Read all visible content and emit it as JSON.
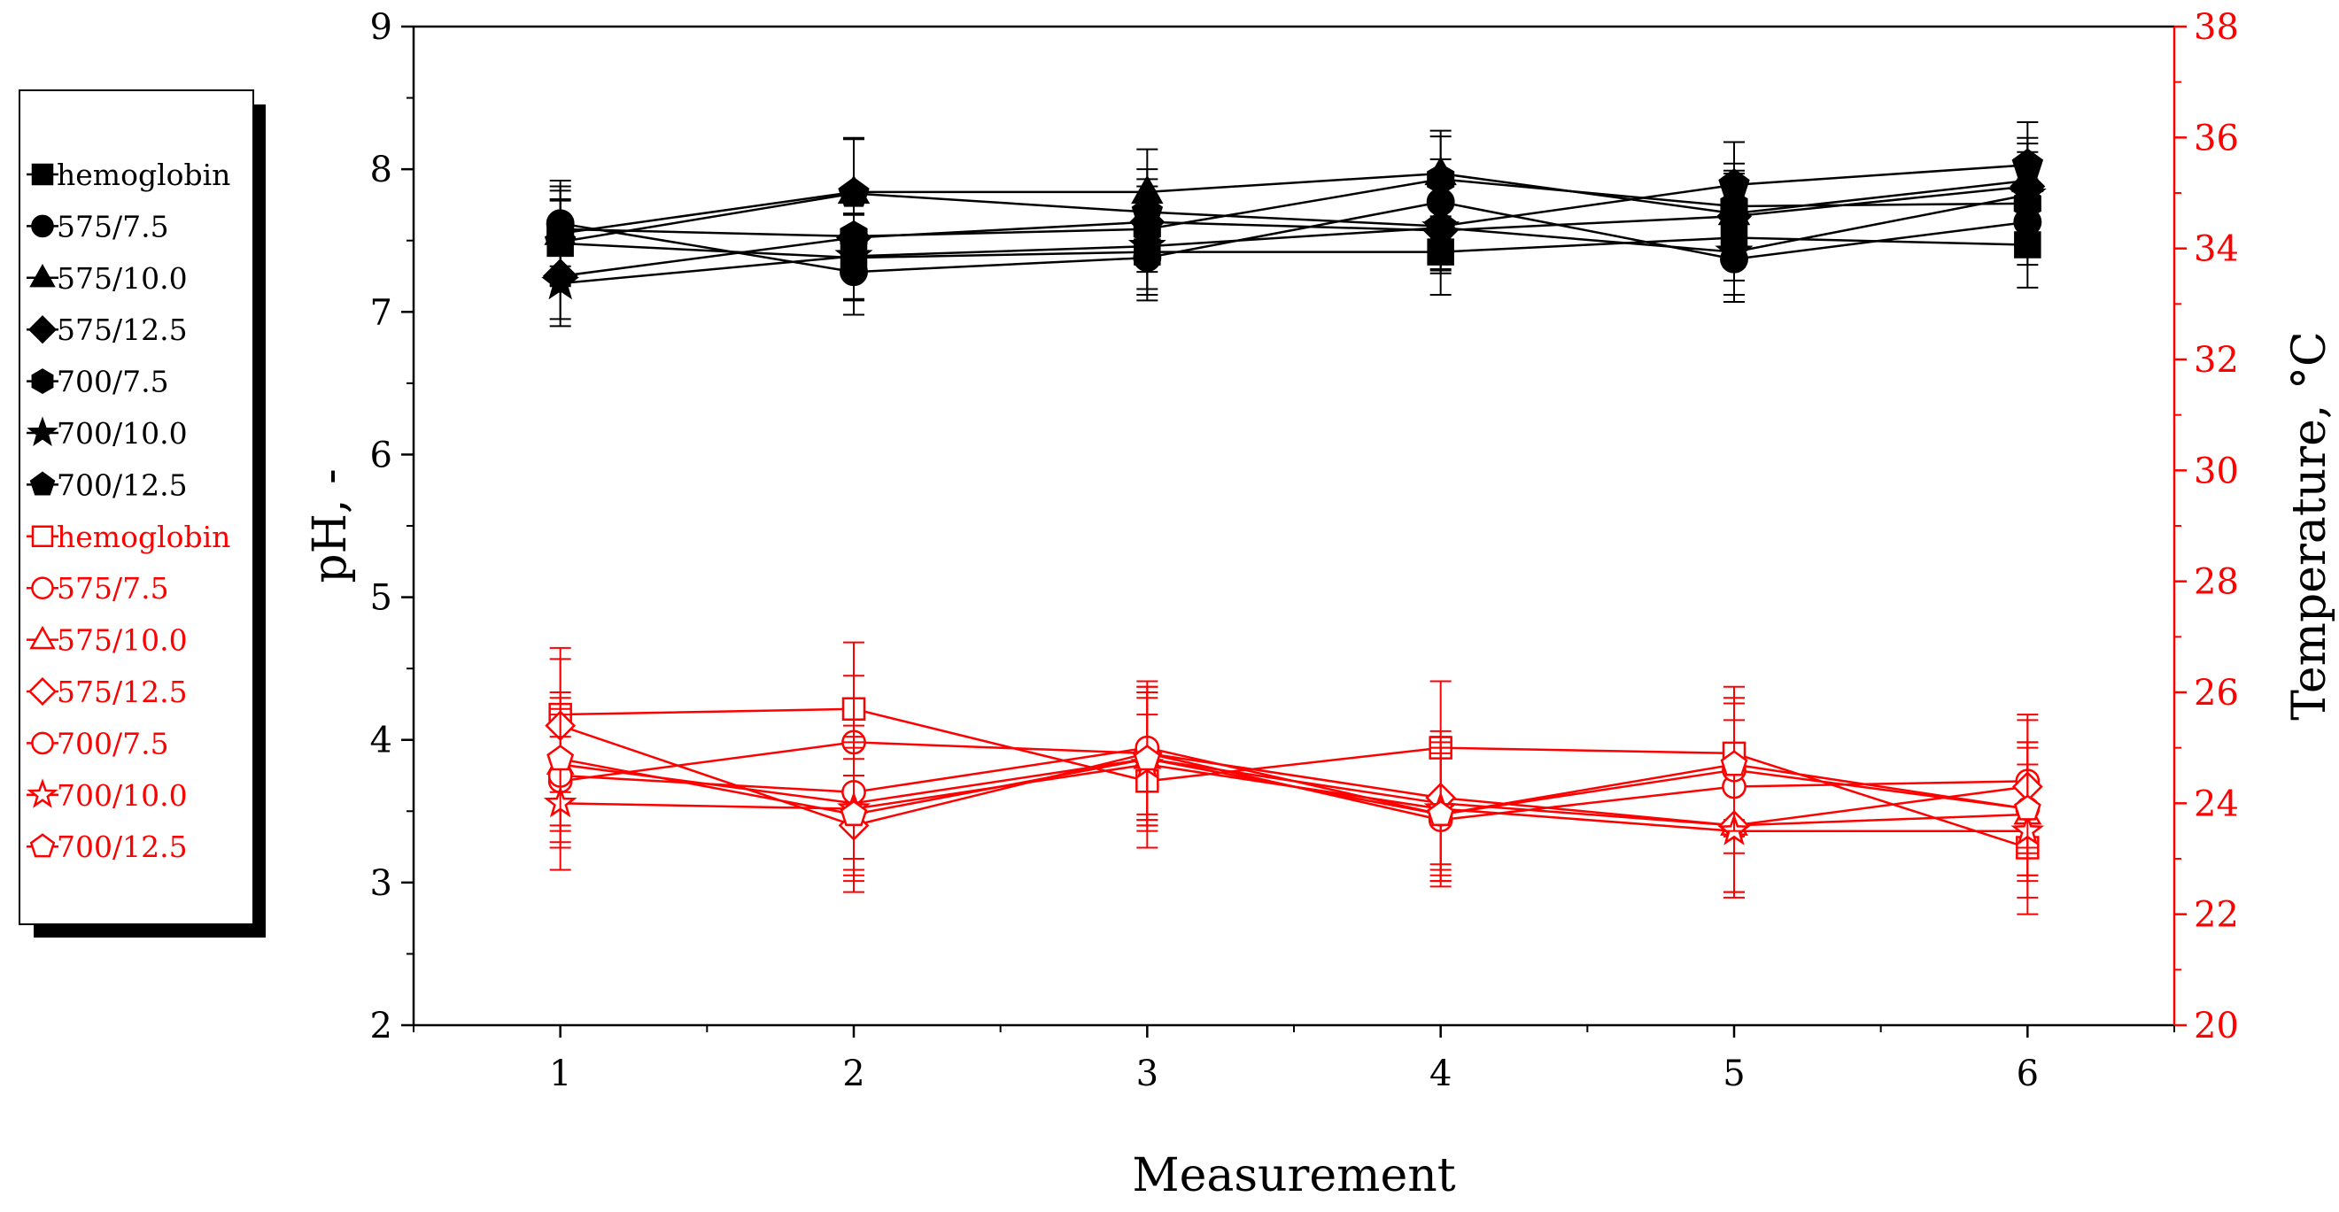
{
  "chart_data": {
    "type": "line",
    "title": "",
    "xlabel": "Measurement",
    "ylabel_left": "pH, -",
    "ylabel_right": "Temperature, °C",
    "x": [
      1,
      2,
      3,
      4,
      5,
      6
    ],
    "xlim": [
      0.5,
      6.5
    ],
    "ylim_left": [
      2,
      9
    ],
    "ylim_right": [
      20,
      38
    ],
    "x_ticks": [
      "1",
      "2",
      "3",
      "4",
      "5",
      "6"
    ],
    "y_left_ticks": [
      "2",
      "3",
      "4",
      "5",
      "6",
      "7",
      "8",
      "9"
    ],
    "y_right_ticks": [
      "20",
      "22",
      "24",
      "26",
      "28",
      "30",
      "32",
      "34",
      "36",
      "38"
    ],
    "grid": false,
    "legend_position": "outside-left",
    "colors": {
      "ph": "#000000",
      "temperature": "#ff0000"
    },
    "series": [
      {
        "name": "hemoglobin",
        "axis": "left",
        "marker": "square",
        "filled": true,
        "values": [
          7.48,
          7.38,
          7.42,
          7.42,
          7.52,
          7.47
        ],
        "error": [
          0.3,
          0.3,
          0.3,
          0.3,
          0.3,
          0.3
        ]
      },
      {
        "name": "575/7.5",
        "axis": "left",
        "marker": "circle",
        "filled": true,
        "values": [
          7.62,
          7.28,
          7.38,
          7.77,
          7.37,
          7.63
        ],
        "error": [
          0.3,
          0.3,
          0.3,
          0.3,
          0.3,
          0.3
        ]
      },
      {
        "name": "575/10.0",
        "axis": "left",
        "marker": "triangle",
        "filled": true,
        "values": [
          7.55,
          7.84,
          7.84,
          7.97,
          7.69,
          7.92
        ],
        "error": [
          0.3,
          0.38,
          0.3,
          0.3,
          0.3,
          0.3
        ]
      },
      {
        "name": "575/12.5",
        "axis": "left",
        "marker": "diamond",
        "filled": true,
        "values": [
          7.25,
          7.52,
          7.63,
          7.57,
          7.67,
          7.88
        ],
        "error": [
          0.3,
          0.3,
          0.3,
          0.3,
          0.3,
          0.3
        ]
      },
      {
        "name": "700/7.5",
        "axis": "left",
        "marker": "hexagon",
        "filled": true,
        "values": [
          7.58,
          7.53,
          7.58,
          7.93,
          7.74,
          7.76
        ],
        "error": [
          0.3,
          0.3,
          0.3,
          0.3,
          0.3,
          0.3
        ]
      },
      {
        "name": "700/10.0",
        "axis": "left",
        "marker": "star",
        "filled": true,
        "values": [
          7.2,
          7.39,
          7.46,
          7.59,
          7.42,
          7.82
        ],
        "error": [
          0.3,
          0.3,
          0.3,
          0.3,
          0.3,
          0.3
        ]
      },
      {
        "name": "700/12.5",
        "axis": "left",
        "marker": "pentagon",
        "filled": true,
        "values": [
          7.49,
          7.83,
          7.7,
          7.6,
          7.89,
          8.03
        ],
        "error": [
          0.3,
          0.38,
          0.3,
          0.3,
          0.3,
          0.3
        ]
      },
      {
        "name": "hemoglobin",
        "axis": "right",
        "marker": "square",
        "filled": false,
        "values": [
          25.6,
          25.7,
          24.4,
          25.0,
          24.9,
          23.2
        ],
        "error": [
          1.2,
          1.2,
          1.2,
          1.2,
          1.2,
          1.2
        ]
      },
      {
        "name": "575/7.5",
        "axis": "right",
        "marker": "circle",
        "filled": false,
        "values": [
          24.4,
          25.1,
          24.9,
          23.7,
          24.3,
          24.4
        ],
        "error": [
          1.2,
          1.2,
          1.2,
          1.2,
          1.2,
          1.2
        ]
      },
      {
        "name": "575/10.0",
        "axis": "right",
        "marker": "triangle",
        "filled": false,
        "values": [
          24.7,
          24.0,
          24.8,
          24.0,
          23.6,
          23.8
        ],
        "error": [
          1.2,
          1.2,
          1.2,
          1.2,
          1.2,
          1.2
        ]
      },
      {
        "name": "575/12.5",
        "axis": "right",
        "marker": "diamond",
        "filled": false,
        "values": [
          25.4,
          23.6,
          24.9,
          24.1,
          23.6,
          24.3
        ],
        "error": [
          1.2,
          1.2,
          1.2,
          1.2,
          1.2,
          1.2
        ]
      },
      {
        "name": "700/7.5",
        "axis": "right",
        "marker": "circle",
        "filled": false,
        "values": [
          24.5,
          24.2,
          25.0,
          23.8,
          24.6,
          23.9
        ],
        "error": [
          1.2,
          1.2,
          1.2,
          1.2,
          1.2,
          1.2
        ]
      },
      {
        "name": "700/10.0",
        "axis": "right",
        "marker": "star",
        "filled": false,
        "values": [
          24.0,
          23.9,
          24.7,
          23.9,
          23.5,
          23.5
        ],
        "error": [
          1.2,
          1.2,
          1.2,
          1.2,
          1.2,
          1.2
        ]
      },
      {
        "name": "700/12.5",
        "axis": "right",
        "marker": "pentagon",
        "filled": false,
        "values": [
          24.8,
          23.8,
          24.8,
          23.8,
          24.7,
          23.9
        ],
        "error": [
          1.2,
          1.2,
          1.2,
          1.2,
          1.2,
          1.2
        ]
      }
    ]
  }
}
